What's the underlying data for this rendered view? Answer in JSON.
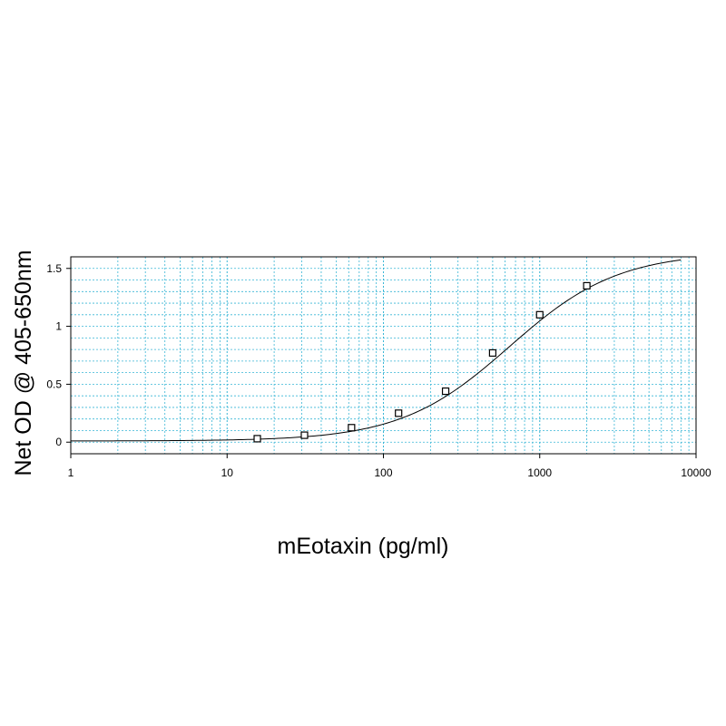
{
  "chart_data": {
    "type": "scatter",
    "title": "",
    "xlabel": "mEotaxin (pg/ml)",
    "ylabel": "Net OD @ 405-650nm",
    "x_scale": "log",
    "xlim": [
      1,
      10000
    ],
    "ylim": [
      -0.1,
      1.6
    ],
    "x_ticks": [
      1,
      10,
      100,
      1000,
      10000
    ],
    "x_tick_labels": [
      "1",
      "10",
      "100",
      "1000",
      "10000"
    ],
    "y_ticks": [
      0,
      0.5,
      1,
      1.5
    ],
    "y_tick_labels": [
      "0",
      "0.5",
      "1",
      "1.5"
    ],
    "grid": true,
    "legend": "none",
    "colors": {
      "grid": "#39b6d6",
      "curve": "#000000",
      "points": "#000000"
    },
    "series": [
      {
        "x": [
          15.6,
          31.25,
          62.5,
          125,
          250,
          500,
          1000,
          2000
        ],
        "y": [
          0.03,
          0.06,
          0.125,
          0.25,
          0.44,
          0.77,
          1.1,
          1.35
        ]
      }
    ],
    "fit_curve": {
      "model": "4-parameter logistic",
      "bottom": 0.01,
      "top": 1.64,
      "ec50": 640,
      "hill": 1.25,
      "x_range": [
        1,
        8000
      ]
    }
  }
}
